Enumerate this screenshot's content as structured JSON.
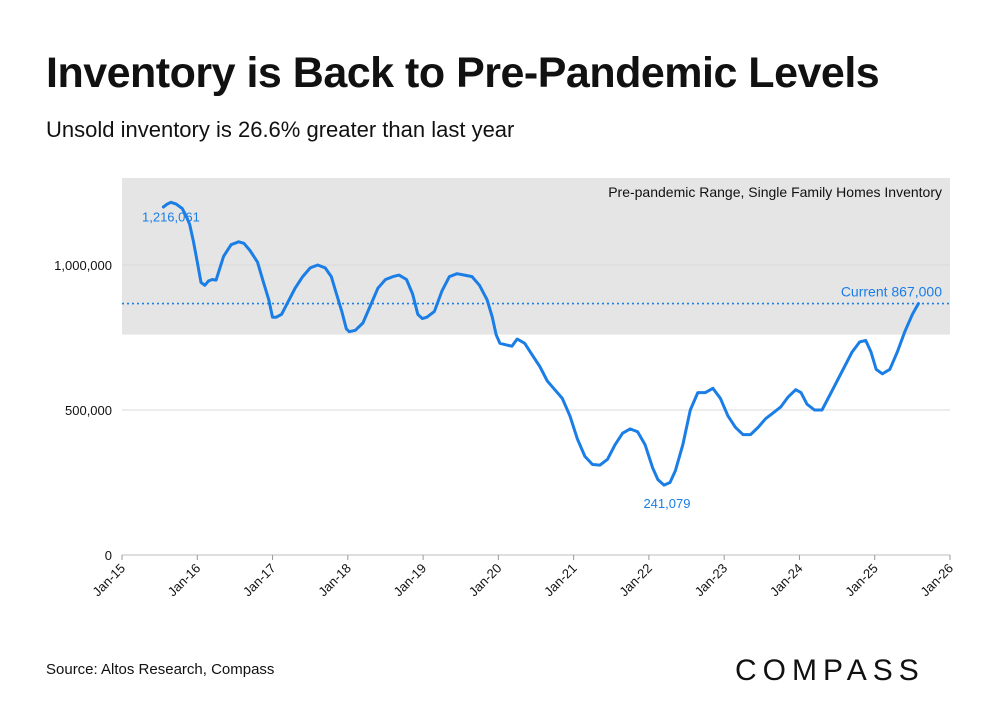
{
  "header": {
    "title": "Inventory is Back to Pre-Pandemic Levels",
    "subtitle": "Unsold inventory is 26.6% greater than last year"
  },
  "footer": {
    "source": "Source: Altos Research, Compass",
    "brand": "COMPASS"
  },
  "colors": {
    "line": "#1a7ee6",
    "band": "#e5e5e5",
    "grid": "#d9d9d9",
    "text": "#111111"
  },
  "chart_data": {
    "type": "line",
    "title": "Inventory is Back to Pre-Pandemic Levels",
    "subtitle": "Unsold inventory is 26.6% greater than last year",
    "xlabel": "",
    "ylabel": "",
    "ylim": [
      0,
      1300000
    ],
    "xlim": [
      2015.0,
      2026.0
    ],
    "y_ticks": [
      0,
      500000,
      1000000
    ],
    "y_tick_labels": [
      "0",
      "500,000",
      "1,000,000"
    ],
    "x_ticks": [
      2015,
      2016,
      2017,
      2018,
      2019,
      2020,
      2021,
      2022,
      2023,
      2024,
      2025,
      2026
    ],
    "x_tick_labels": [
      "Jan-15",
      "Jan-16",
      "Jan-17",
      "Jan-18",
      "Jan-19",
      "Jan-20",
      "Jan-21",
      "Jan-22",
      "Jan-23",
      "Jan-24",
      "Jan-25",
      "Jan-26"
    ],
    "grid": true,
    "band": {
      "label": "Pre-pandemic Range, Single Family Homes Inventory",
      "y0": 760000,
      "y1": 1300000
    },
    "reference_line": {
      "label": "Current 867,000",
      "value": 867000
    },
    "annotations": [
      {
        "label": "1,216,061",
        "x": 2015.65,
        "y": 1216061
      },
      {
        "label": "241,079",
        "x": 2022.2,
        "y": 241079
      }
    ],
    "series": [
      {
        "name": "Single Family Homes Inventory",
        "x": [
          2015.55,
          2015.6,
          2015.65,
          2015.72,
          2015.8,
          2015.85,
          2015.9,
          2015.95,
          2016.0,
          2016.05,
          2016.1,
          2016.15,
          2016.2,
          2016.25,
          2016.3,
          2016.35,
          2016.45,
          2016.55,
          2016.62,
          2016.7,
          2016.8,
          2016.88,
          2016.95,
          2017.0,
          2017.05,
          2017.12,
          2017.2,
          2017.3,
          2017.4,
          2017.5,
          2017.6,
          2017.7,
          2017.78,
          2017.85,
          2017.92,
          2017.98,
          2018.02,
          2018.1,
          2018.2,
          2018.3,
          2018.4,
          2018.5,
          2018.6,
          2018.68,
          2018.78,
          2018.86,
          2018.93,
          2018.99,
          2019.05,
          2019.15,
          2019.25,
          2019.35,
          2019.45,
          2019.55,
          2019.65,
          2019.75,
          2019.85,
          2019.92,
          2019.97,
          2020.02,
          2020.1,
          2020.18,
          2020.25,
          2020.35,
          2020.45,
          2020.55,
          2020.65,
          2020.75,
          2020.85,
          2020.95,
          2021.05,
          2021.15,
          2021.25,
          2021.35,
          2021.45,
          2021.55,
          2021.65,
          2021.75,
          2021.85,
          2021.95,
          2022.05,
          2022.12,
          2022.2,
          2022.28,
          2022.35,
          2022.45,
          2022.55,
          2022.65,
          2022.75,
          2022.85,
          2022.95,
          2023.05,
          2023.15,
          2023.25,
          2023.35,
          2023.45,
          2023.55,
          2023.65,
          2023.75,
          2023.85,
          2023.95,
          2024.02,
          2024.1,
          2024.2,
          2024.3,
          2024.4,
          2024.5,
          2024.6,
          2024.7,
          2024.8,
          2024.88,
          2024.95,
          2025.02,
          2025.1,
          2025.2,
          2025.3,
          2025.4,
          2025.5,
          2025.58
        ],
        "values": [
          1200000,
          1210000,
          1216061,
          1210000,
          1195000,
          1170000,
          1140000,
          1080000,
          1010000,
          940000,
          930000,
          945000,
          950000,
          948000,
          990000,
          1030000,
          1070000,
          1080000,
          1075000,
          1050000,
          1010000,
          940000,
          880000,
          820000,
          820000,
          830000,
          870000,
          920000,
          960000,
          990000,
          1000000,
          990000,
          960000,
          900000,
          840000,
          780000,
          770000,
          775000,
          800000,
          860000,
          920000,
          950000,
          960000,
          965000,
          950000,
          900000,
          830000,
          815000,
          820000,
          840000,
          910000,
          960000,
          970000,
          965000,
          960000,
          930000,
          880000,
          820000,
          760000,
          730000,
          725000,
          720000,
          745000,
          730000,
          690000,
          650000,
          600000,
          570000,
          540000,
          480000,
          400000,
          340000,
          312000,
          310000,
          330000,
          380000,
          420000,
          435000,
          425000,
          380000,
          300000,
          260000,
          241079,
          250000,
          290000,
          380000,
          500000,
          560000,
          560000,
          575000,
          540000,
          480000,
          440000,
          415000,
          415000,
          440000,
          470000,
          490000,
          510000,
          545000,
          570000,
          560000,
          520000,
          500000,
          500000,
          550000,
          600000,
          650000,
          700000,
          735000,
          740000,
          700000,
          640000,
          625000,
          640000,
          700000,
          770000,
          830000,
          867000
        ]
      }
    ]
  }
}
